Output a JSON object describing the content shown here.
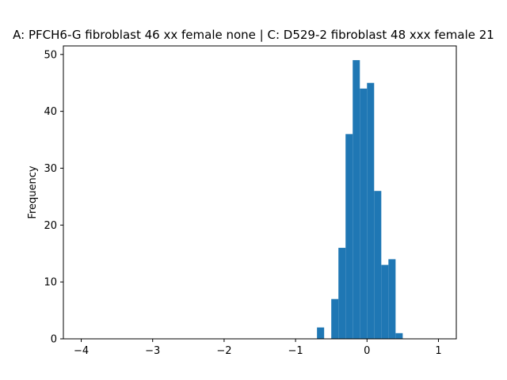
{
  "chart_data": {
    "type": "bar",
    "title": "A: PFCH6-G fibroblast 46 xx female none | C: D529-2 fibroblast 48 xxx female 21",
    "xlabel": "",
    "ylabel": "Frequency",
    "xlim": [
      -4.25,
      1.25
    ],
    "ylim": [
      0,
      51.5
    ],
    "xticks": [
      -4,
      -3,
      -2,
      -1,
      0,
      1
    ],
    "xtick_labels": [
      "−4",
      "−3",
      "−2",
      "−1",
      "0",
      "1"
    ],
    "yticks": [
      0,
      10,
      20,
      30,
      40,
      50
    ],
    "ytick_labels": [
      "0",
      "10",
      "20",
      "30",
      "40",
      "50"
    ],
    "bar_color": "#1f77b4",
    "bins": [
      {
        "x0": -0.7,
        "x1": -0.6,
        "count": 2
      },
      {
        "x0": -0.5,
        "x1": -0.4,
        "count": 7
      },
      {
        "x0": -0.4,
        "x1": -0.3,
        "count": 16
      },
      {
        "x0": -0.3,
        "x1": -0.2,
        "count": 36
      },
      {
        "x0": -0.2,
        "x1": -0.1,
        "count": 49
      },
      {
        "x0": -0.1,
        "x1": 0.0,
        "count": 44
      },
      {
        "x0": 0.0,
        "x1": 0.1,
        "count": 45
      },
      {
        "x0": 0.1,
        "x1": 0.2,
        "count": 26
      },
      {
        "x0": 0.2,
        "x1": 0.3,
        "count": 13
      },
      {
        "x0": 0.3,
        "x1": 0.4,
        "count": 14
      },
      {
        "x0": 0.4,
        "x1": 0.5,
        "count": 1
      }
    ],
    "grid": false,
    "legend": "none"
  }
}
